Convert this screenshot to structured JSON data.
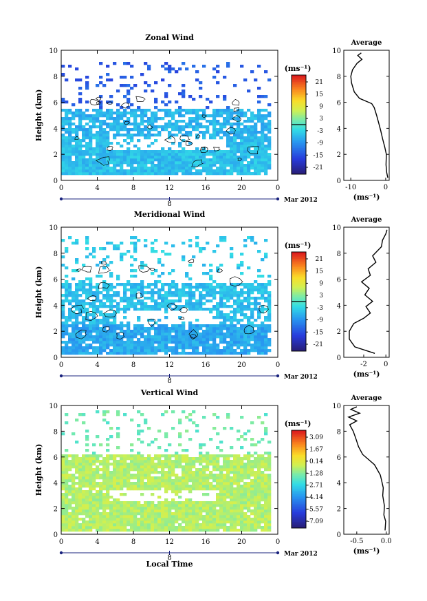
{
  "colors": {
    "axis": "#000000",
    "profile_line": "#000000",
    "contour": "#000000",
    "background": "#ffffff"
  },
  "chart_data": [
    {
      "type": "heatmap",
      "title": "Zonal Wind",
      "ylabel": "Height (km)",
      "xlabel": "",
      "x_ticks": [
        "0",
        "4",
        "8",
        "12",
        "16",
        "20",
        "0"
      ],
      "y_ticks": [
        "0",
        "2",
        "4",
        "6",
        "8",
        "10"
      ],
      "xlim": [
        0,
        24
      ],
      "ylim": [
        0,
        10
      ],
      "date_label": "8",
      "month_label": "Mar 2012",
      "colorbar": {
        "unit": "(ms⁻¹)",
        "tick_labels": [
          "21",
          "15",
          "9",
          "3",
          "-3",
          "-9",
          "-15",
          "-21"
        ],
        "range": [
          -24,
          24
        ]
      },
      "field": {
        "time_range": [
          0,
          23.2
        ],
        "height_range": [
          0,
          10
        ],
        "layers": [
          {
            "h": [
              0.5,
              3.5
            ],
            "value": -5,
            "coverage": 0.92
          },
          {
            "h": [
              3.5,
              5.6
            ],
            "value": -6,
            "coverage": 0.75
          },
          {
            "h": [
              5.6,
              9.2
            ],
            "value": -14,
            "coverage": 0.12
          }
        ],
        "gap_band": {
          "h": [
            2.4,
            3.4
          ],
          "t": [
            5,
            18
          ]
        }
      },
      "profile": {
        "title": "Average",
        "xlabel": "(ms⁻¹)",
        "x_ticks": [
          "-10",
          "0"
        ],
        "xlim": [
          -12,
          1
        ],
        "ylim": [
          0,
          10
        ],
        "points": [
          [
            0.6,
            0.2
          ],
          [
            0.3,
            0.6
          ],
          [
            0.1,
            1.2
          ],
          [
            0.2,
            2.0
          ],
          [
            -0.3,
            2.6
          ],
          [
            -0.9,
            3.2
          ],
          [
            -1.4,
            3.8
          ],
          [
            -2.0,
            4.4
          ],
          [
            -2.6,
            5.0
          ],
          [
            -3.3,
            5.6
          ],
          [
            -4.0,
            5.9
          ],
          [
            -7.5,
            6.3
          ],
          [
            -9.0,
            6.8
          ],
          [
            -9.8,
            7.5
          ],
          [
            -10.0,
            8.0
          ],
          [
            -9.5,
            8.5
          ],
          [
            -8.2,
            9.0
          ],
          [
            -6.8,
            9.3
          ],
          [
            -8.0,
            9.6
          ],
          [
            -7.0,
            9.8
          ]
        ]
      }
    },
    {
      "type": "heatmap",
      "title": "Meridional Wind",
      "ylabel": "Height (km)",
      "xlabel": "",
      "x_ticks": [
        "0",
        "4",
        "8",
        "12",
        "16",
        "20",
        "0"
      ],
      "y_ticks": [
        "0",
        "2",
        "4",
        "6",
        "8",
        "10"
      ],
      "xlim": [
        0,
        24
      ],
      "ylim": [
        0,
        10
      ],
      "date_label": "8",
      "month_label": "Mar 2012",
      "colorbar": {
        "unit": "(ms⁻¹)",
        "tick_labels": [
          "21",
          "15",
          "9",
          "3",
          "-3",
          "-9",
          "-15",
          "-21"
        ],
        "range": [
          -24,
          24
        ]
      },
      "field": {
        "time_range": [
          0,
          23.2
        ],
        "height_range": [
          0,
          10
        ],
        "layers": [
          {
            "h": [
              0.3,
              2.6
            ],
            "value": -7,
            "coverage": 0.9
          },
          {
            "h": [
              2.6,
              5.8
            ],
            "value": -5,
            "coverage": 0.72
          },
          {
            "h": [
              5.8,
              9.4
            ],
            "value": -4,
            "coverage": 0.15
          }
        ],
        "gap_band": {
          "h": [
            2.6,
            3.6
          ],
          "t": [
            6,
            17
          ]
        }
      },
      "profile": {
        "title": "Average",
        "xlabel": "(ms⁻¹)",
        "x_ticks": [
          "-2",
          "0"
        ],
        "xlim": [
          -3.8,
          0.3
        ],
        "ylim": [
          0,
          10
        ],
        "points": [
          [
            -1.0,
            0.3
          ],
          [
            -2.8,
            0.8
          ],
          [
            -3.3,
            1.4
          ],
          [
            -3.3,
            2.0
          ],
          [
            -2.9,
            2.6
          ],
          [
            -2.0,
            3.0
          ],
          [
            -1.4,
            3.4
          ],
          [
            -1.8,
            3.9
          ],
          [
            -1.2,
            4.3
          ],
          [
            -1.9,
            4.8
          ],
          [
            -1.5,
            5.3
          ],
          [
            -2.2,
            5.8
          ],
          [
            -1.4,
            6.3
          ],
          [
            -1.6,
            6.8
          ],
          [
            -0.9,
            7.3
          ],
          [
            -1.2,
            7.8
          ],
          [
            -0.4,
            8.5
          ],
          [
            -0.3,
            9.0
          ],
          [
            0.0,
            9.5
          ],
          [
            0.1,
            9.8
          ]
        ]
      }
    },
    {
      "type": "heatmap",
      "title": "Vertical Wind",
      "ylabel": "Height (km)",
      "xlabel": "Local Time",
      "x_ticks": [
        "0",
        "4",
        "8",
        "12",
        "16",
        "20",
        "0"
      ],
      "y_ticks": [
        "0",
        "2",
        "4",
        "6",
        "8",
        "10"
      ],
      "xlim": [
        0,
        24
      ],
      "ylim": [
        0,
        10
      ],
      "date_label": "8",
      "month_label": "Mar 2012",
      "colorbar": {
        "unit": "(ms⁻¹)",
        "tick_labels": [
          "3.09",
          "1.67",
          "0.14",
          "-1.28",
          "-2.71",
          "-4.14",
          "-5.57",
          "-7.09"
        ],
        "range": [
          -8,
          4
        ]
      },
      "field": {
        "time_range": [
          0,
          23.2
        ],
        "height_range": [
          0,
          10
        ],
        "layers": [
          {
            "h": [
              0.3,
              3.4
            ],
            "value": -0.6,
            "coverage": 0.95
          },
          {
            "h": [
              3.4,
              6.4
            ],
            "value": -0.6,
            "coverage": 0.9
          },
          {
            "h": [
              6.4,
              9.8
            ],
            "value": -1.6,
            "coverage": 0.12
          }
        ],
        "gap_band": {
          "h": [
            2.6,
            3.5
          ],
          "t": [
            5,
            17
          ]
        }
      },
      "profile": {
        "title": "Average",
        "xlabel": "(ms⁻¹)",
        "x_ticks": [
          "-0.5",
          "0.0"
        ],
        "xlim": [
          -0.72,
          0.05
        ],
        "ylim": [
          0,
          10
        ],
        "points": [
          [
            -0.02,
            0.3
          ],
          [
            -0.01,
            1.0
          ],
          [
            -0.04,
            1.5
          ],
          [
            -0.03,
            2.2
          ],
          [
            -0.06,
            3.0
          ],
          [
            -0.05,
            3.6
          ],
          [
            -0.08,
            4.2
          ],
          [
            -0.1,
            4.6
          ],
          [
            -0.15,
            5.0
          ],
          [
            -0.2,
            5.4
          ],
          [
            -0.3,
            5.8
          ],
          [
            -0.4,
            6.2
          ],
          [
            -0.47,
            6.8
          ],
          [
            -0.52,
            7.5
          ],
          [
            -0.56,
            8.0
          ],
          [
            -0.62,
            8.5
          ],
          [
            -0.5,
            8.8
          ],
          [
            -0.64,
            9.1
          ],
          [
            -0.45,
            9.4
          ],
          [
            -0.6,
            9.7
          ],
          [
            -0.5,
            9.9
          ]
        ]
      }
    }
  ]
}
